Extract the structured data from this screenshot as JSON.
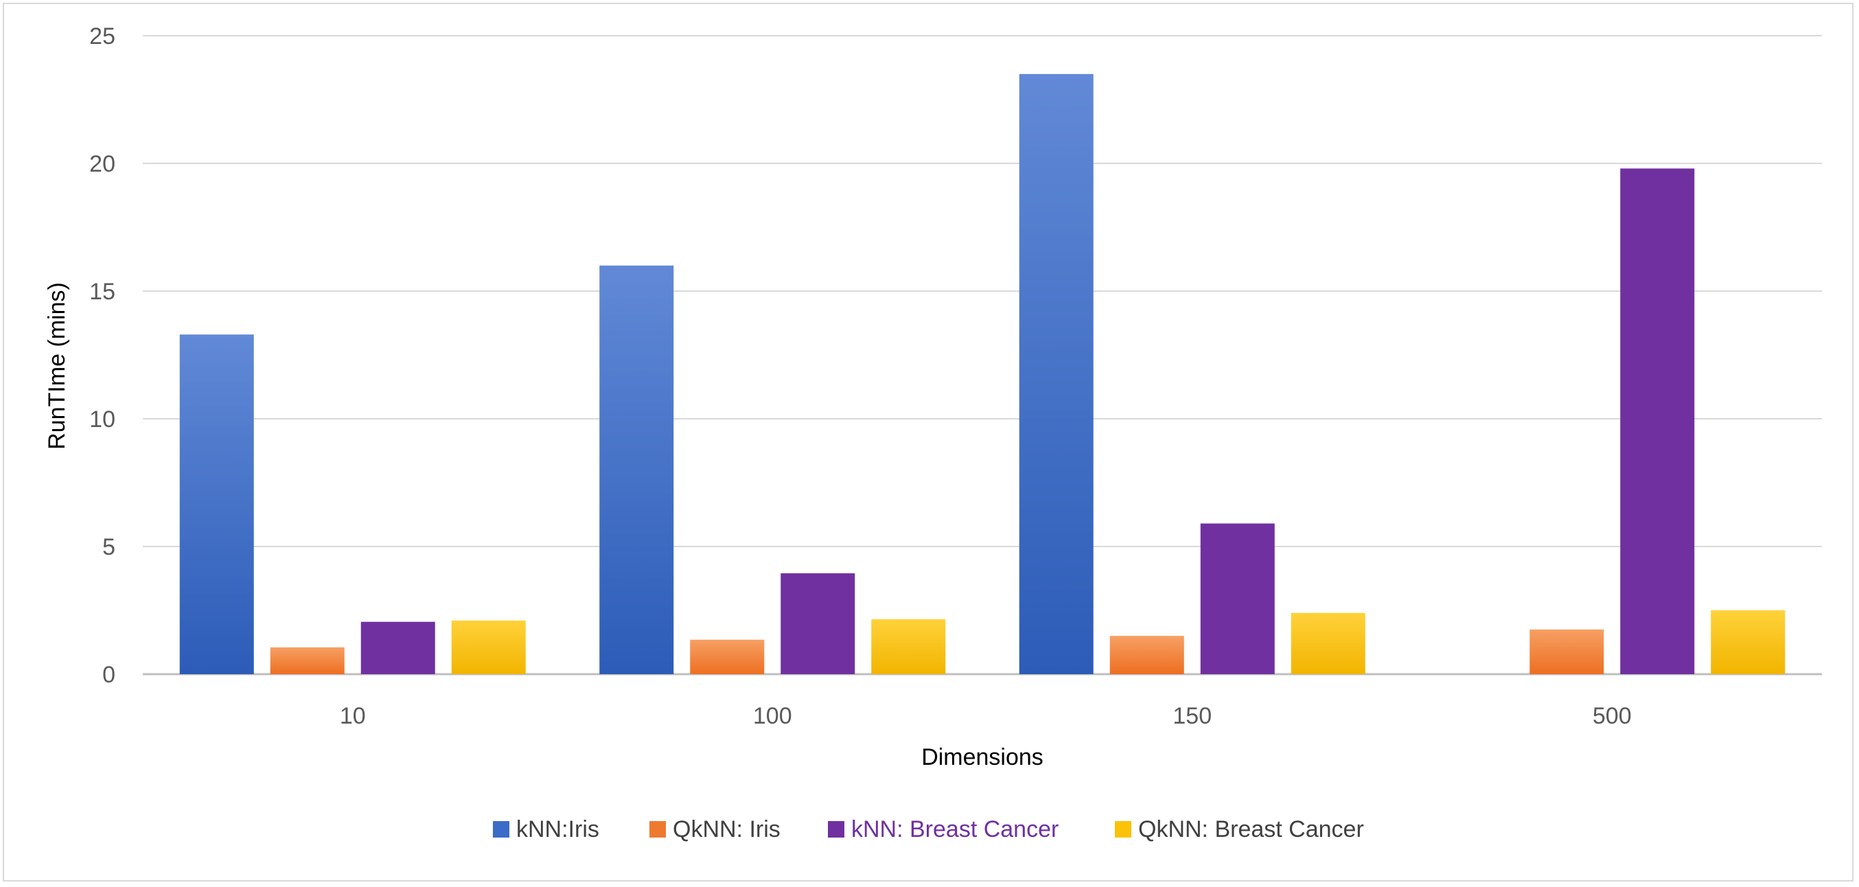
{
  "chart_data": {
    "type": "bar",
    "title": "",
    "xlabel": "Dimensions",
    "ylabel": "RunTIme (mins)",
    "categories": [
      "10",
      "100",
      "150",
      "500"
    ],
    "ylim": [
      0,
      25
    ],
    "yticks": [
      0,
      5,
      10,
      15,
      20,
      25
    ],
    "grid": true,
    "legend_position": "bottom",
    "series": [
      {
        "name": "kNN:Iris",
        "values": [
          13.3,
          16.0,
          23.5,
          null
        ],
        "color_top": "#6189d6",
        "color_bottom": "#2c5cb8"
      },
      {
        "name": "QkNN: Iris",
        "values": [
          1.05,
          1.35,
          1.5,
          1.75
        ],
        "color_top": "#f6a064",
        "color_bottom": "#ed6f21"
      },
      {
        "name": "kNN: Breast Cancer",
        "values": [
          2.05,
          3.95,
          5.9,
          19.8
        ],
        "color_top": "#7030a0",
        "color_bottom": "#7030a0"
      },
      {
        "name": "QkNN: Breast Cancer",
        "values": [
          2.1,
          2.15,
          2.4,
          2.5
        ],
        "color_top": "#ffd23a",
        "color_bottom": "#f2b400"
      }
    ],
    "legend_colors": {
      "kNN:Iris": "#3a6cc8",
      "QkNN: Iris": "#ee7a30",
      "kNN: Breast Cancer": "#7030a0",
      "QkNN: Breast Cancer": "#fbc20a"
    },
    "legend_text_colors": {
      "kNN:Iris": "#404040",
      "QkNN: Iris": "#404040",
      "kNN: Breast Cancer": "#7030a0",
      "QkNN: Breast Cancer": "#404040"
    },
    "gridline_color": "#d9d9d9",
    "axis_text_color": "#595959"
  }
}
